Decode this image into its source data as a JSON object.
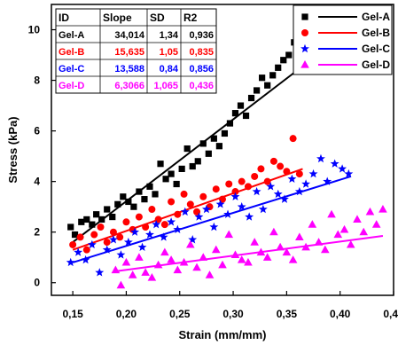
{
  "chart_data": {
    "type": "scatter",
    "xlabel": "Strain (mm/mm)",
    "ylabel": "Stress (kPa)",
    "xlim": [
      0.13,
      0.45
    ],
    "ylim": [
      -0.5,
      11
    ],
    "xticks": [
      0.15,
      0.2,
      0.25,
      0.3,
      0.35,
      0.4,
      0.45
    ],
    "xtick_labels": [
      "0,15",
      "0,20",
      "0,25",
      "0,30",
      "0,35",
      "0,40",
      "0,45"
    ],
    "yticks": [
      0,
      2,
      4,
      6,
      8,
      10
    ],
    "ytick_labels": [
      "0",
      "2",
      "4",
      "6",
      "8",
      "10"
    ],
    "grid": false,
    "legend_position": "top-right",
    "series": [
      {
        "name": "Gel-A",
        "color": "#000000",
        "marker": "square",
        "x": [
          0.148,
          0.152,
          0.158,
          0.163,
          0.168,
          0.172,
          0.177,
          0.182,
          0.187,
          0.192,
          0.197,
          0.202,
          0.207,
          0.212,
          0.217,
          0.222,
          0.227,
          0.232,
          0.237,
          0.242,
          0.247,
          0.252,
          0.257,
          0.262,
          0.267,
          0.272,
          0.277,
          0.282,
          0.287,
          0.292,
          0.297,
          0.302,
          0.307,
          0.312,
          0.317,
          0.322,
          0.327,
          0.332,
          0.337,
          0.342,
          0.347,
          0.352,
          0.357
        ],
        "y": [
          2.2,
          1.9,
          2.4,
          2.5,
          2.3,
          2.7,
          2.5,
          2.9,
          2.6,
          3.1,
          3.4,
          3.2,
          3.0,
          3.6,
          3.3,
          3.8,
          3.5,
          4.7,
          4.1,
          4.3,
          3.9,
          4.5,
          5.3,
          4.6,
          4.8,
          5.5,
          5.1,
          5.7,
          5.4,
          5.9,
          6.3,
          6.7,
          7.0,
          6.6,
          7.3,
          7.6,
          8.1,
          7.8,
          8.2,
          8.5,
          8.8,
          9.0,
          9.5
        ],
        "fit_x": [
          0.15,
          0.357
        ],
        "fit_y": [
          1.6,
          8.3
        ]
      },
      {
        "name": "Gel-B",
        "color": "#ff0000",
        "marker": "circle",
        "x": [
          0.15,
          0.157,
          0.163,
          0.17,
          0.176,
          0.182,
          0.188,
          0.194,
          0.2,
          0.206,
          0.212,
          0.218,
          0.224,
          0.23,
          0.236,
          0.242,
          0.248,
          0.254,
          0.26,
          0.266,
          0.272,
          0.278,
          0.284,
          0.29,
          0.296,
          0.302,
          0.308,
          0.314,
          0.32,
          0.326,
          0.332,
          0.338,
          0.344,
          0.35,
          0.356,
          0.362
        ],
        "y": [
          1.5,
          1.8,
          1.3,
          1.9,
          2.2,
          1.6,
          2.0,
          1.8,
          2.4,
          2.1,
          2.6,
          2.2,
          2.9,
          2.5,
          2.3,
          3.2,
          2.7,
          3.5,
          3.1,
          2.8,
          3.4,
          3.0,
          3.7,
          3.3,
          3.9,
          3.6,
          4.0,
          3.8,
          4.2,
          4.5,
          4.0,
          4.8,
          4.6,
          4.4,
          5.7,
          4.3
        ],
        "fit_x": [
          0.15,
          0.365
        ],
        "fit_y": [
          1.3,
          4.5
        ]
      },
      {
        "name": "Gel-C",
        "color": "#0000ff",
        "marker": "star",
        "x": [
          0.148,
          0.155,
          0.162,
          0.168,
          0.175,
          0.182,
          0.188,
          0.195,
          0.202,
          0.208,
          0.215,
          0.222,
          0.228,
          0.235,
          0.242,
          0.248,
          0.255,
          0.262,
          0.268,
          0.275,
          0.282,
          0.288,
          0.295,
          0.302,
          0.308,
          0.315,
          0.322,
          0.328,
          0.335,
          0.342,
          0.348,
          0.355,
          0.362,
          0.368,
          0.375,
          0.382,
          0.388,
          0.395,
          0.402,
          0.408
        ],
        "y": [
          0.8,
          1.2,
          0.9,
          1.5,
          0.4,
          1.3,
          1.7,
          1.1,
          1.6,
          2.0,
          1.4,
          1.9,
          2.3,
          1.8,
          2.4,
          2.1,
          2.8,
          1.7,
          2.6,
          2.9,
          2.2,
          3.1,
          2.7,
          3.4,
          3.0,
          2.6,
          3.6,
          2.9,
          3.8,
          3.5,
          3.3,
          4.1,
          3.6,
          3.9,
          4.3,
          4.9,
          4.0,
          4.7,
          4.5,
          4.3
        ],
        "fit_x": [
          0.15,
          0.41
        ],
        "fit_y": [
          0.8,
          4.2
        ]
      },
      {
        "name": "Gel-D",
        "color": "#ff00ff",
        "marker": "triangle",
        "x": [
          0.19,
          0.195,
          0.2,
          0.206,
          0.212,
          0.218,
          0.224,
          0.23,
          0.236,
          0.242,
          0.248,
          0.254,
          0.26,
          0.266,
          0.272,
          0.278,
          0.284,
          0.29,
          0.296,
          0.302,
          0.308,
          0.314,
          0.32,
          0.326,
          0.332,
          0.338,
          0.344,
          0.35,
          0.356,
          0.362,
          0.368,
          0.374,
          0.38,
          0.386,
          0.392,
          0.398,
          0.404,
          0.41,
          0.416,
          0.422,
          0.428,
          0.434,
          0.44
        ],
        "y": [
          0.5,
          -0.1,
          0.8,
          0.3,
          1.0,
          0.4,
          0.2,
          0.7,
          1.2,
          0.9,
          0.5,
          0.8,
          1.5,
          0.6,
          1.0,
          0.3,
          1.3,
          0.7,
          1.9,
          1.1,
          0.9,
          0.8,
          1.6,
          1.2,
          1.0,
          2.0,
          1.4,
          1.2,
          0.9,
          1.8,
          1.4,
          2.3,
          1.6,
          1.3,
          2.7,
          1.9,
          2.1,
          1.5,
          2.5,
          2.0,
          2.8,
          2.3,
          2.9
        ],
        "fit_x": [
          0.19,
          0.44
        ],
        "fit_y": [
          0.45,
          1.85
        ]
      }
    ],
    "stats_table": {
      "headers": [
        "ID",
        "Slope",
        "SD",
        "R2"
      ],
      "rows": [
        {
          "color": "#000000",
          "cells": [
            "Gel-A",
            "34,014",
            "1,34",
            "0,936"
          ]
        },
        {
          "color": "#ff0000",
          "cells": [
            "Gel-B",
            "15,635",
            "1,05",
            "0,835"
          ]
        },
        {
          "color": "#0000ff",
          "cells": [
            "Gel-C",
            "13,588",
            "0,84",
            "0,856"
          ]
        },
        {
          "color": "#ff00ff",
          "cells": [
            "Gel-D",
            "6,3066",
            "1,065",
            "0,436"
          ]
        }
      ]
    }
  }
}
